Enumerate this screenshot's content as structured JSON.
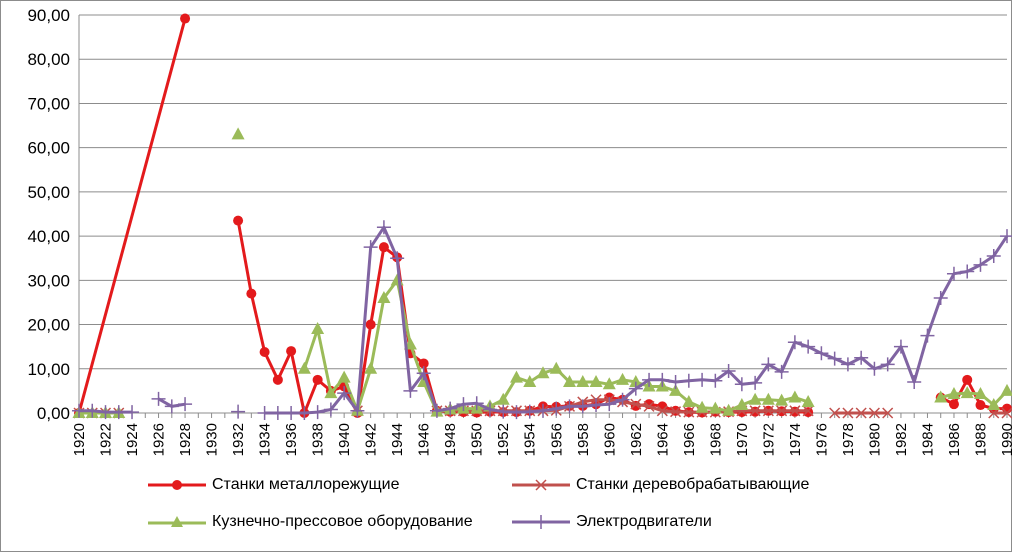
{
  "chart_data": {
    "type": "line",
    "title": "",
    "xlabel": "",
    "ylabel": "",
    "ylim": [
      0,
      90
    ],
    "y_ticks": [
      "0,00",
      "10,00",
      "20,00",
      "30,00",
      "40,00",
      "50,00",
      "60,00",
      "70,00",
      "80,00",
      "90,00"
    ],
    "x_ticks": [
      "1920",
      "1922",
      "1924",
      "1926",
      "1928",
      "1930",
      "1932",
      "1934",
      "1936",
      "1938",
      "1940",
      "1942",
      "1944",
      "1946",
      "1948",
      "1950",
      "1952",
      "1954",
      "1956",
      "1958",
      "1960",
      "1962",
      "1964",
      "1966",
      "1968",
      "1970",
      "1972",
      "1974",
      "1976",
      "1978",
      "1980",
      "1982",
      "1984",
      "1986",
      "1988",
      "1990"
    ],
    "xlim": [
      1920,
      1990
    ],
    "grid": "horizontal",
    "legend_position": "bottom",
    "series": [
      {
        "name": "Станки металлорежущие",
        "color": "#e31a1c",
        "marker": "circle",
        "points": [
          [
            1920,
            0
          ],
          [
            1928,
            89.2
          ],
          null,
          [
            1932,
            43.5
          ],
          [
            1933,
            27
          ],
          [
            1934,
            13.8
          ],
          [
            1935,
            7.5
          ],
          [
            1936,
            14
          ],
          [
            1937,
            0
          ],
          [
            1938,
            7.5
          ],
          [
            1939,
            5
          ],
          [
            1940,
            6
          ],
          [
            1941,
            0
          ],
          [
            1942,
            20
          ],
          [
            1943,
            37.5
          ],
          [
            1944,
            35.2
          ],
          [
            1945,
            13.5
          ],
          [
            1946,
            11.2
          ],
          [
            1947,
            0.5
          ],
          [
            1948,
            0.3
          ],
          [
            1949,
            0.2
          ],
          [
            1950,
            0.1
          ],
          [
            1951,
            0.3
          ],
          [
            1952,
            0.2
          ],
          [
            1953,
            0.2
          ],
          [
            1954,
            0.5
          ],
          [
            1955,
            1.5
          ],
          [
            1956,
            1.4
          ],
          [
            1957,
            1.6
          ],
          [
            1958,
            1.6
          ],
          [
            1959,
            2
          ],
          [
            1960,
            3.5
          ],
          [
            1961,
            3
          ],
          [
            1962,
            1.6
          ],
          [
            1963,
            2
          ],
          [
            1964,
            1.5
          ],
          [
            1965,
            0.5
          ],
          [
            1966,
            0.2
          ],
          [
            1967,
            0.1
          ],
          [
            1968,
            0.3
          ],
          [
            1969,
            0.2
          ],
          [
            1970,
            0.2
          ],
          [
            1971,
            0.3
          ],
          [
            1972,
            0.5
          ],
          [
            1973,
            0.4
          ],
          [
            1974,
            0.3
          ],
          [
            1975,
            0.2
          ],
          null,
          [
            1985,
            3.5
          ],
          [
            1986,
            2
          ],
          [
            1987,
            7.5
          ],
          [
            1988,
            1.8
          ],
          [
            1989,
            1
          ],
          [
            1990,
            1
          ]
        ]
      },
      {
        "name": "Станки деревобрабатывающие",
        "color": "#c0504d",
        "marker": "x",
        "points": [
          [
            1920,
            0
          ],
          [
            1921,
            0
          ],
          [
            1922,
            0
          ],
          [
            1923,
            0
          ],
          null,
          [
            1941,
            0.5
          ],
          null,
          [
            1947,
            0.5
          ],
          [
            1948,
            0.5
          ],
          [
            1949,
            0.5
          ],
          [
            1950,
            0.5
          ],
          [
            1951,
            0.5
          ],
          [
            1952,
            0.5
          ],
          [
            1953,
            0.5
          ],
          [
            1954,
            0.5
          ],
          [
            1955,
            0.5
          ],
          [
            1956,
            0.6
          ],
          [
            1957,
            1.5
          ],
          [
            1958,
            2.5
          ],
          [
            1959,
            3
          ],
          [
            1960,
            3
          ],
          [
            1961,
            2.5
          ],
          [
            1962,
            2
          ],
          [
            1963,
            1.5
          ],
          [
            1964,
            0.5
          ],
          [
            1965,
            0.3
          ],
          [
            1966,
            0.2
          ],
          [
            1967,
            0.2
          ],
          [
            1968,
            0.2
          ],
          [
            1969,
            0.3
          ],
          [
            1970,
            0.5
          ],
          [
            1971,
            0.5
          ],
          [
            1972,
            0.5
          ],
          [
            1973,
            0.5
          ],
          [
            1974,
            0.5
          ],
          [
            1975,
            0.5
          ],
          null,
          [
            1977,
            0
          ],
          [
            1978,
            0
          ],
          [
            1979,
            0
          ],
          [
            1980,
            0
          ],
          [
            1981,
            0
          ],
          null,
          [
            1989,
            0
          ],
          [
            1990,
            0
          ]
        ]
      },
      {
        "name": "Кузнечно-прессовое оборудование",
        "color": "#9bbb59",
        "marker": "triangle",
        "points": [
          [
            1920,
            0
          ],
          [
            1921,
            0
          ],
          [
            1922,
            0
          ],
          [
            1923,
            0
          ],
          null,
          [
            1932,
            63
          ],
          null,
          [
            1937,
            10
          ],
          [
            1938,
            19
          ],
          [
            1939,
            4.5
          ],
          [
            1940,
            8
          ],
          [
            1941,
            0.5
          ],
          [
            1942,
            10
          ],
          [
            1943,
            26
          ],
          [
            1944,
            30
          ],
          [
            1945,
            15.5
          ],
          [
            1946,
            7
          ],
          [
            1947,
            0.3
          ],
          [
            1948,
            0.8
          ],
          [
            1949,
            1
          ],
          [
            1950,
            1
          ],
          [
            1951,
            1.5
          ],
          [
            1952,
            3
          ],
          [
            1953,
            8
          ],
          [
            1954,
            7
          ],
          [
            1955,
            9
          ],
          [
            1956,
            10
          ],
          [
            1957,
            7
          ],
          [
            1958,
            7
          ],
          [
            1959,
            7
          ],
          [
            1960,
            6.5
          ],
          [
            1961,
            7.5
          ],
          [
            1962,
            7
          ],
          [
            1963,
            6
          ],
          [
            1964,
            6
          ],
          [
            1965,
            5
          ],
          [
            1966,
            2.5
          ],
          [
            1967,
            1.2
          ],
          [
            1968,
            1
          ],
          [
            1969,
            0.5
          ],
          [
            1970,
            1.8
          ],
          [
            1971,
            3
          ],
          [
            1972,
            3
          ],
          [
            1973,
            2.8
          ],
          [
            1974,
            3.5
          ],
          [
            1975,
            2.5
          ],
          null,
          [
            1985,
            3.5
          ],
          [
            1986,
            4.3
          ],
          [
            1987,
            4.5
          ],
          [
            1988,
            4.3
          ],
          [
            1989,
            1.8
          ],
          [
            1990,
            5
          ]
        ]
      },
      {
        "name": "Электродвигатели",
        "color": "#8064a2",
        "marker": "plus",
        "points": [
          [
            1920,
            0.5
          ],
          [
            1921,
            0.5
          ],
          [
            1922,
            0.2
          ],
          [
            1923,
            0.2
          ],
          [
            1924,
            0.2
          ],
          null,
          [
            1926,
            3.2
          ],
          [
            1927,
            1.5
          ],
          [
            1928,
            2
          ],
          null,
          [
            1932,
            0.3
          ],
          null,
          [
            1934,
            0
          ],
          [
            1935,
            0
          ],
          [
            1936,
            0
          ],
          [
            1937,
            0
          ],
          [
            1938,
            0.2
          ],
          [
            1939,
            0.8
          ],
          [
            1940,
            4.5
          ],
          [
            1941,
            0.5
          ],
          [
            1942,
            37.5
          ],
          [
            1943,
            42
          ],
          [
            1944,
            35
          ],
          [
            1945,
            5
          ],
          [
            1946,
            9
          ],
          [
            1947,
            0.5
          ],
          [
            1948,
            1
          ],
          [
            1949,
            2
          ],
          [
            1950,
            2.2
          ],
          [
            1951,
            0.8
          ],
          [
            1952,
            0.3
          ],
          [
            1953,
            0.2
          ],
          [
            1954,
            0.3
          ],
          [
            1955,
            0.5
          ],
          [
            1956,
            1
          ],
          [
            1957,
            1.5
          ],
          [
            1958,
            1.5
          ],
          [
            1959,
            1.8
          ],
          [
            1960,
            2
          ],
          [
            1961,
            3
          ],
          [
            1962,
            5.5
          ],
          [
            1963,
            7.5
          ],
          [
            1964,
            7.5
          ],
          [
            1965,
            7
          ],
          [
            1966,
            7.3
          ],
          [
            1967,
            7.5
          ],
          [
            1968,
            7.3
          ],
          [
            1969,
            9.5
          ],
          [
            1970,
            6.5
          ],
          [
            1971,
            6.8
          ],
          [
            1972,
            11
          ],
          [
            1973,
            9.3
          ],
          [
            1974,
            16
          ],
          [
            1975,
            15
          ],
          [
            1976,
            13.5
          ],
          [
            1977,
            12.3
          ],
          [
            1978,
            11
          ],
          [
            1979,
            12.5
          ],
          [
            1980,
            10
          ],
          [
            1981,
            11
          ],
          [
            1982,
            15
          ],
          [
            1983,
            7
          ],
          [
            1984,
            17.5
          ],
          [
            1985,
            26
          ],
          [
            1986,
            31.5
          ],
          [
            1987,
            32
          ],
          [
            1988,
            33.5
          ],
          [
            1989,
            35.5
          ],
          [
            1990,
            40
          ]
        ]
      }
    ]
  }
}
